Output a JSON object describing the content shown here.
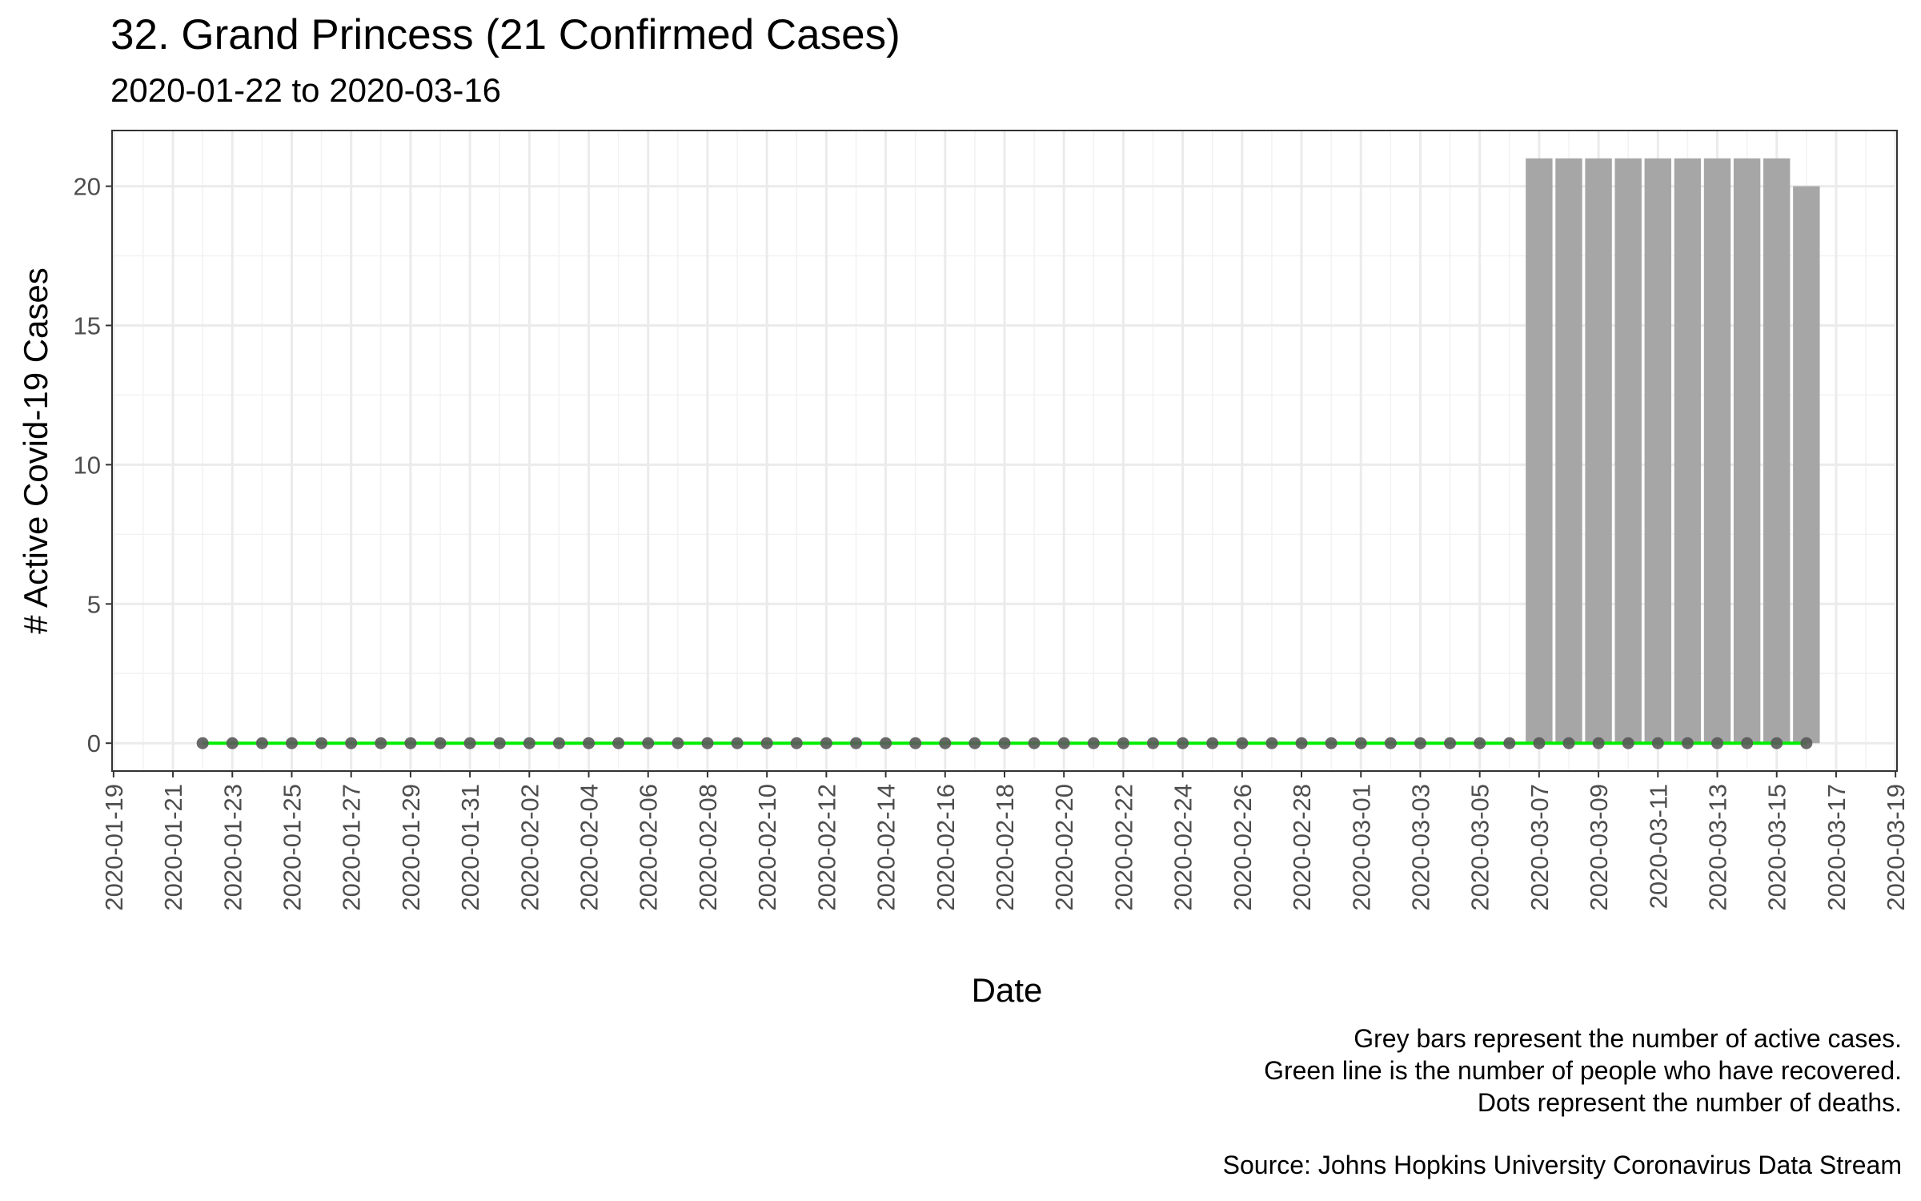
{
  "chart_data": {
    "type": "bar",
    "title": "32. Grand Princess (21 Confirmed Cases)",
    "subtitle": "2020-01-22 to 2020-03-16",
    "xlabel": "Date",
    "ylabel": "# Active Covid-19 Cases",
    "ylim": [
      -1,
      22
    ],
    "yticks": [
      0,
      5,
      10,
      15,
      20
    ],
    "xlim": [
      "2020-01-19",
      "2020-03-19"
    ],
    "xticks": [
      "2020-01-19",
      "2020-01-21",
      "2020-01-23",
      "2020-01-25",
      "2020-01-27",
      "2020-01-29",
      "2020-01-31",
      "2020-02-02",
      "2020-02-04",
      "2020-02-06",
      "2020-02-08",
      "2020-02-10",
      "2020-02-12",
      "2020-02-14",
      "2020-02-16",
      "2020-02-18",
      "2020-02-20",
      "2020-02-22",
      "2020-02-24",
      "2020-02-26",
      "2020-02-28",
      "2020-03-01",
      "2020-03-03",
      "2020-03-05",
      "2020-03-07",
      "2020-03-09",
      "2020-03-11",
      "2020-03-13",
      "2020-03-15",
      "2020-03-17",
      "2020-03-19"
    ],
    "grid": true,
    "series": [
      {
        "kind": "bar",
        "color": "#a6a6a6",
        "x": [
          "2020-03-07",
          "2020-03-08",
          "2020-03-09",
          "2020-03-10",
          "2020-03-11",
          "2020-03-12",
          "2020-03-13",
          "2020-03-14",
          "2020-03-15",
          "2020-03-16"
        ],
        "values": [
          21,
          21,
          21,
          21,
          21,
          21,
          21,
          21,
          21,
          20
        ]
      },
      {
        "kind": "line",
        "color": "#00ee00",
        "x_start": "2020-01-22",
        "x_end": "2020-03-16",
        "value": 0
      },
      {
        "kind": "points",
        "color": "#595959",
        "x_start": "2020-01-22",
        "x_end": "2020-03-16",
        "value": 0
      }
    ]
  },
  "caption": {
    "line1": "Grey bars represent the number of active cases.",
    "line2": "Green line is the number of people who have recovered.",
    "line3": "Dots represent the number of deaths.",
    "source": "Source: Johns Hopkins University Coronavirus Data Stream"
  }
}
